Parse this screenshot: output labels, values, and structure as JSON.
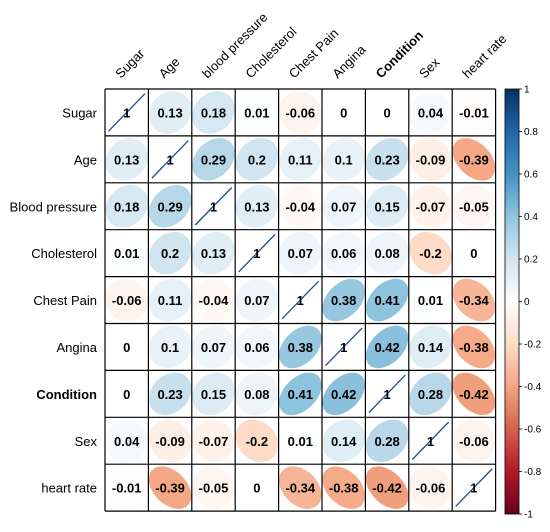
{
  "chart_data": {
    "type": "heatmap",
    "subtype": "correlation-ellipse",
    "row_labels": [
      "Sugar",
      "Age",
      "Blood pressure",
      "Cholesterol",
      "Chest Pain",
      "Angina",
      "Condition",
      "Sex",
      "heart rate"
    ],
    "col_labels": [
      "Sugar",
      "Age",
      "blood pressure",
      "Cholesterol",
      "Chest Pain",
      "Angina",
      "Condition",
      "Sex",
      "heart rate"
    ],
    "bold_labels": [
      "Condition"
    ],
    "matrix": [
      [
        1,
        0.13,
        0.18,
        0.01,
        -0.06,
        0,
        0,
        0.04,
        -0.01
      ],
      [
        0.13,
        1,
        0.29,
        0.2,
        0.11,
        0.1,
        0.23,
        -0.09,
        -0.39
      ],
      [
        0.18,
        0.29,
        1,
        0.13,
        -0.04,
        0.07,
        0.15,
        -0.07,
        -0.05
      ],
      [
        0.01,
        0.2,
        0.13,
        1,
        0.07,
        0.06,
        0.08,
        -0.2,
        0
      ],
      [
        -0.06,
        0.11,
        -0.04,
        0.07,
        1,
        0.38,
        0.41,
        0.01,
        -0.34
      ],
      [
        0,
        0.1,
        0.07,
        0.06,
        0.38,
        1,
        0.42,
        0.14,
        -0.38
      ],
      [
        0,
        0.23,
        0.15,
        0.08,
        0.41,
        0.42,
        1,
        0.28,
        -0.42
      ],
      [
        0.04,
        -0.09,
        -0.07,
        -0.2,
        0.01,
        0.14,
        0.28,
        1,
        -0.06
      ],
      [
        -0.01,
        -0.39,
        -0.05,
        0,
        -0.34,
        -0.38,
        -0.42,
        -0.06,
        1
      ]
    ],
    "colorbar": {
      "ticks": [
        "1",
        "0.8",
        "0.6",
        "0.4",
        "0.2",
        "0",
        "-0.2",
        "-0.4",
        "-0.6",
        "-0.8",
        "-1"
      ],
      "range": [
        -1,
        1
      ]
    },
    "colors": {
      "negative": "#67001f",
      "neutral": "#ffffff",
      "positive": "#053061"
    }
  }
}
